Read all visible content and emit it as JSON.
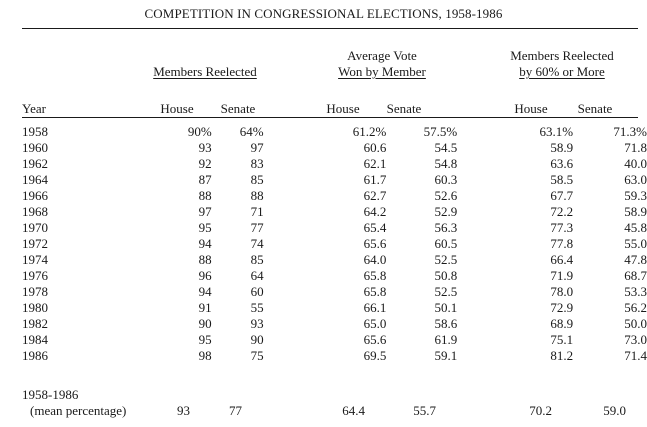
{
  "title": "COMPETITION IN CONGRESSIONAL ELECTIONS, 1958-1986",
  "groups": {
    "reelected": "Members Reelected",
    "avg_vote_line1": "Average Vote",
    "avg_vote_line2": "Won by Member",
    "sixty_line1": "Members Reelected",
    "sixty_line2": "by 60% or More"
  },
  "headers": {
    "year": "Year",
    "house": "House",
    "senate": "Senate"
  },
  "rows": [
    {
      "year": "1958",
      "re_house": "90%",
      "re_senate": "64%",
      "av_house": "61.2%",
      "av_senate": "57.5%",
      "s_house": "63.1%",
      "s_senate": "71.3%"
    },
    {
      "year": "1960",
      "re_house": "93",
      "re_senate": "97",
      "av_house": "60.6",
      "av_senate": "54.5",
      "s_house": "58.9",
      "s_senate": "71.8"
    },
    {
      "year": "1962",
      "re_house": "92",
      "re_senate": "83",
      "av_house": "62.1",
      "av_senate": "54.8",
      "s_house": "63.6",
      "s_senate": "40.0"
    },
    {
      "year": "1964",
      "re_house": "87",
      "re_senate": "85",
      "av_house": "61.7",
      "av_senate": "60.3",
      "s_house": "58.5",
      "s_senate": "63.0"
    },
    {
      "year": "1966",
      "re_house": "88",
      "re_senate": "88",
      "av_house": "62.7",
      "av_senate": "52.6",
      "s_house": "67.7",
      "s_senate": "59.3"
    },
    {
      "year": "1968",
      "re_house": "97",
      "re_senate": "71",
      "av_house": "64.2",
      "av_senate": "52.9",
      "s_house": "72.2",
      "s_senate": "58.9"
    },
    {
      "year": "1970",
      "re_house": "95",
      "re_senate": "77",
      "av_house": "65.4",
      "av_senate": "56.3",
      "s_house": "77.3",
      "s_senate": "45.8"
    },
    {
      "year": "1972",
      "re_house": "94",
      "re_senate": "74",
      "av_house": "65.6",
      "av_senate": "60.5",
      "s_house": "77.8",
      "s_senate": "55.0"
    },
    {
      "year": "1974",
      "re_house": "88",
      "re_senate": "85",
      "av_house": "64.0",
      "av_senate": "52.5",
      "s_house": "66.4",
      "s_senate": "47.8"
    },
    {
      "year": "1976",
      "re_house": "96",
      "re_senate": "64",
      "av_house": "65.8",
      "av_senate": "50.8",
      "s_house": "71.9",
      "s_senate": "68.7"
    },
    {
      "year": "1978",
      "re_house": "94",
      "re_senate": "60",
      "av_house": "65.8",
      "av_senate": "52.5",
      "s_house": "78.0",
      "s_senate": "53.3"
    },
    {
      "year": "1980",
      "re_house": "91",
      "re_senate": "55",
      "av_house": "66.1",
      "av_senate": "50.1",
      "s_house": "72.9",
      "s_senate": "56.2"
    },
    {
      "year": "1982",
      "re_house": "90",
      "re_senate": "93",
      "av_house": "65.0",
      "av_senate": "58.6",
      "s_house": "68.9",
      "s_senate": "50.0"
    },
    {
      "year": "1984",
      "re_house": "95",
      "re_senate": "90",
      "av_house": "65.6",
      "av_senate": "61.9",
      "s_house": "75.1",
      "s_senate": "73.0"
    },
    {
      "year": "1986",
      "re_house": "98",
      "re_senate": "75",
      "av_house": "69.5",
      "av_senate": "59.1",
      "s_house": "81.2",
      "s_senate": "71.4"
    }
  ],
  "mean_row": {
    "year": "1958-1986",
    "label": "(mean percentage)",
    "re_house": "93",
    "re_senate": "77",
    "av_house": "64.4",
    "av_senate": "55.7",
    "s_house": "70.2",
    "s_senate": "59.0"
  }
}
